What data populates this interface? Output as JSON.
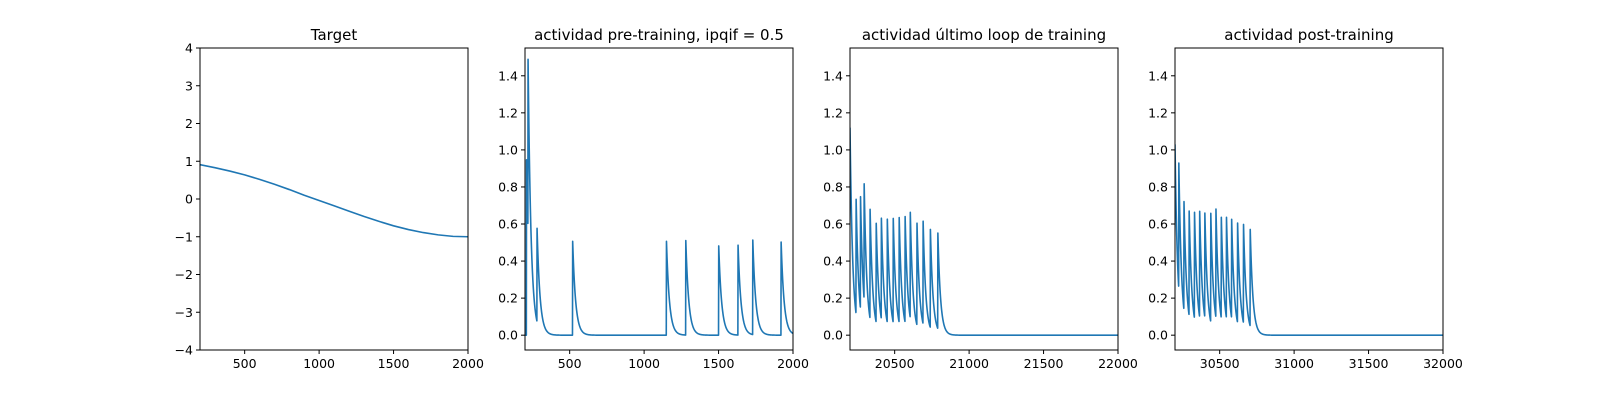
{
  "chart_data": [
    {
      "type": "line",
      "title": "Target",
      "xlabel": "",
      "ylabel": "",
      "xlim": [
        200,
        2000
      ],
      "ylim": [
        -4,
        4
      ],
      "xticks": [
        500,
        1000,
        1500,
        2000
      ],
      "xtick_labels": [
        "500",
        "1000",
        "1500",
        "2000"
      ],
      "yticks": [
        -4,
        -3,
        -2,
        -1,
        0,
        1,
        2,
        3,
        4
      ],
      "ytick_labels": [
        "−4",
        "−3",
        "−2",
        "−1",
        "0",
        "1",
        "2",
        "3",
        "4"
      ],
      "grid": false,
      "color": "#1f77b4",
      "series": [
        {
          "x": [
            200,
            300,
            400,
            500,
            600,
            700,
            800,
            900,
            1000,
            1100,
            1200,
            1300,
            1400,
            1500,
            1600,
            1700,
            1800,
            1900,
            2000
          ],
          "y": [
            0.91,
            0.83,
            0.74,
            0.64,
            0.52,
            0.39,
            0.25,
            0.1,
            -0.04,
            -0.18,
            -0.32,
            -0.46,
            -0.59,
            -0.71,
            -0.81,
            -0.89,
            -0.95,
            -0.99,
            -1.0
          ]
        }
      ]
    },
    {
      "type": "line",
      "title": "actividad pre-training, ipqif = 0.5",
      "xlabel": "",
      "ylabel": "",
      "xlim": [
        200,
        2000
      ],
      "ylim": [
        -0.08,
        1.55
      ],
      "xticks": [
        500,
        1000,
        1500,
        2000
      ],
      "xtick_labels": [
        "500",
        "1000",
        "1500",
        "2000"
      ],
      "yticks": [
        0.0,
        0.2,
        0.4,
        0.6,
        0.8,
        1.0,
        1.2,
        1.4
      ],
      "ytick_labels": [
        "0.0",
        "0.2",
        "0.4",
        "0.6",
        "0.8",
        "1.0",
        "1.2",
        "1.4"
      ],
      "grid": false,
      "color": "#1f77b4",
      "series": [
        {
          "spike_times": [
            210,
            220,
            280,
            520,
            1150,
            1280,
            1500,
            1630,
            1730,
            1920
          ],
          "spike_peaks": [
            0.96,
            0.95,
            0.53,
            0.51,
            0.51,
            0.51,
            0.51,
            0.51,
            0.51,
            0.51
          ],
          "decay_tau": 20,
          "baseline": 0.0
        }
      ]
    },
    {
      "type": "line",
      "title": "actividad último loop de training",
      "xlabel": "",
      "ylabel": "",
      "xlim": [
        20200,
        22000
      ],
      "ylim": [
        -0.08,
        1.55
      ],
      "xticks": [
        20500,
        21000,
        21500,
        22000
      ],
      "xtick_labels": [
        "20500",
        "21000",
        "21500",
        "22000"
      ],
      "yticks": [
        0.0,
        0.2,
        0.4,
        0.6,
        0.8,
        1.0,
        1.2,
        1.4
      ],
      "ytick_labels": [
        "0.0",
        "0.2",
        "0.4",
        "0.6",
        "0.8",
        "1.0",
        "1.2",
        "1.4"
      ],
      "grid": false,
      "color": "#1f77b4",
      "series": [
        {
          "spike_times": [
            20200,
            20240,
            20270,
            20295,
            20335,
            20375,
            20410,
            20450,
            20490,
            20530,
            20570,
            20605,
            20650,
            20690,
            20740,
            20790
          ],
          "spike_peaks": [
            1.12,
            0.66,
            0.63,
            0.63,
            0.59,
            0.57,
            0.57,
            0.58,
            0.58,
            0.58,
            0.58,
            0.57,
            0.55,
            0.59,
            0.53,
            0.52
          ],
          "decay_tau": 18,
          "baseline": 0.0
        }
      ]
    },
    {
      "type": "line",
      "title": "actividad post-training",
      "xlabel": "",
      "ylabel": "",
      "xlim": [
        30200,
        32000
      ],
      "ylim": [
        -0.08,
        1.55
      ],
      "xticks": [
        30500,
        31000,
        31500,
        32000
      ],
      "xtick_labels": [
        "30500",
        "31000",
        "31500",
        "32000"
      ],
      "yticks": [
        0.0,
        0.2,
        0.4,
        0.6,
        0.8,
        1.0,
        1.2,
        1.4
      ],
      "ytick_labels": [
        "0.0",
        "0.2",
        "0.4",
        "0.6",
        "0.8",
        "1.0",
        "1.2",
        "1.4"
      ],
      "grid": false,
      "color": "#1f77b4",
      "series": [
        {
          "spike_times": [
            30200,
            30225,
            30260,
            30295,
            30330,
            30365,
            30400,
            30440,
            30475,
            30510,
            30545,
            30580,
            30620,
            30660,
            30705
          ],
          "spike_peaks": [
            1.03,
            0.71,
            0.6,
            0.57,
            0.61,
            0.6,
            0.58,
            0.6,
            0.59,
            0.58,
            0.57,
            0.55,
            0.55,
            0.54,
            0.53
          ],
          "decay_tau": 18,
          "baseline": 0.0
        }
      ]
    }
  ]
}
